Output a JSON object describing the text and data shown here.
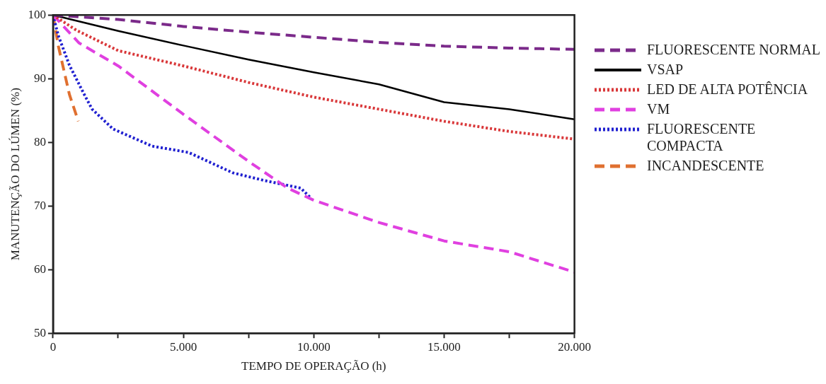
{
  "chart_data": {
    "type": "line",
    "xlabel": "TEMPO DE OPERAÇÃO (h)",
    "ylabel": "MANUTENÇÃO DO LÚMEN (%)",
    "xlim": [
      0,
      20000
    ],
    "ylim": [
      50,
      100
    ],
    "xticks": [
      {
        "value": 0,
        "label": "0"
      },
      {
        "value": 2500,
        "label": null
      },
      {
        "value": 5000,
        "label": "5.000"
      },
      {
        "value": 7500,
        "label": null
      },
      {
        "value": 10000,
        "label": "10.000"
      },
      {
        "value": 12500,
        "label": null
      },
      {
        "value": 15000,
        "label": "15.000"
      },
      {
        "value": 17500,
        "label": null
      },
      {
        "value": 20000,
        "label": "20.000"
      }
    ],
    "yticks": [
      50,
      60,
      70,
      80,
      90,
      100
    ],
    "grid": false,
    "legend": "right",
    "marker": "none",
    "series": [
      {
        "name": "FLUORESCENTE NORMAL",
        "color": "#7b2a8a",
        "line_style": "dashed",
        "x": [
          0,
          2500,
          5000,
          7500,
          10000,
          12500,
          15000,
          17500,
          20000
        ],
        "values": [
          100,
          99.3,
          98.2,
          97.3,
          96.5,
          95.7,
          95.1,
          94.8,
          94.6
        ]
      },
      {
        "name": "VSAP",
        "color": "#000000",
        "line_style": "solid",
        "x": [
          0,
          2500,
          5000,
          7500,
          10000,
          12500,
          15000,
          17500,
          20000
        ],
        "values": [
          100,
          97.5,
          95.2,
          93,
          91,
          89.1,
          86.3,
          85.2,
          83.6
        ]
      },
      {
        "name": "LED DE ALTA POTÊNCIA",
        "color": "#d9383a",
        "line_style": "dotted",
        "x": [
          0,
          900,
          2500,
          5000,
          7500,
          10000,
          12500,
          15000,
          17500,
          20000
        ],
        "values": [
          100,
          97.6,
          94.4,
          92,
          89.4,
          87.1,
          85.2,
          83.3,
          81.7,
          80.5
        ]
      },
      {
        "name": "VM",
        "color": "#e040e0",
        "line_style": "dashed",
        "x": [
          0,
          1000,
          2500,
          5000,
          7500,
          9000,
          10000,
          12500,
          15000,
          17500,
          20000
        ],
        "values": [
          100,
          95.6,
          92,
          84.4,
          77,
          72.8,
          70.9,
          67.4,
          64.5,
          62.8,
          59.6
        ]
      },
      {
        "name": "FLUORESCENTE COMPACTA",
        "color": "#2020d0",
        "line_style": "dotted",
        "x": [
          0,
          200,
          630,
          1200,
          1500,
          2300,
          3800,
          5200,
          6900,
          8100,
          9500,
          9900
        ],
        "values": [
          100,
          96.8,
          92.1,
          87.5,
          85.2,
          82.1,
          79.4,
          78.4,
          75.2,
          74,
          72.8,
          71.2
        ]
      },
      {
        "name": "INCANDESCENTE",
        "color": "#e07030",
        "line_style": "dashed",
        "x": [
          0,
          200,
          630,
          970
        ],
        "values": [
          100,
          95.2,
          87.5,
          83.3
        ]
      }
    ]
  }
}
